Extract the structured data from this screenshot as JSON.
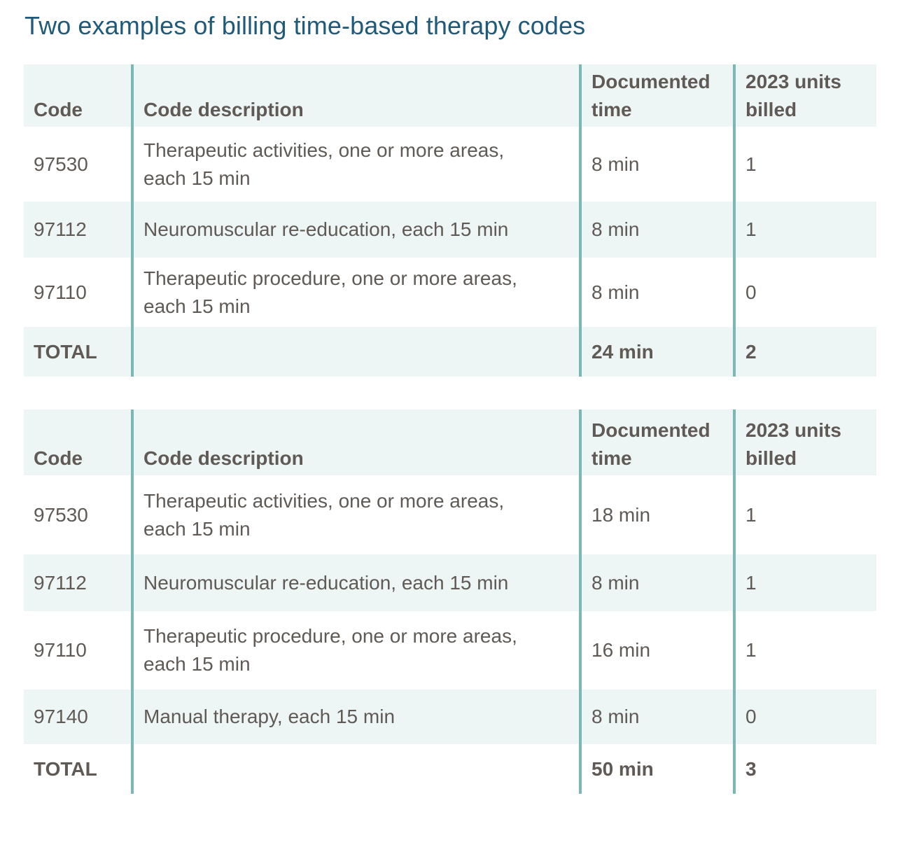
{
  "title": "Two examples of billing time-based therapy codes",
  "columns": {
    "code": "Code",
    "description": "Code description",
    "time": [
      "Documented",
      "time"
    ],
    "units": [
      "2023 units",
      "billed"
    ]
  },
  "tables": [
    {
      "rows": [
        {
          "code": "97530",
          "description": [
            "Therapeutic activities, one or more areas,",
            "each 15 min"
          ],
          "time": "8 min",
          "units": "1"
        },
        {
          "code": "97112",
          "description": [
            "Neuromuscular re-education, each 15  min"
          ],
          "time": "8 min",
          "units": "1"
        },
        {
          "code": "97110",
          "description": [
            "Therapeutic procedure, one or more areas,",
            "each 15 min"
          ],
          "time": "8 min",
          "units": "0"
        }
      ],
      "total": {
        "label": "TOTAL",
        "time": "24 min",
        "units": "2"
      }
    },
    {
      "rows": [
        {
          "code": "97530",
          "description": [
            "Therapeutic activities, one or more areas,",
            "each 15 min"
          ],
          "time": "18 min",
          "units": "1"
        },
        {
          "code": "97112",
          "description": [
            "Neuromuscular re-education, each 15  min"
          ],
          "time": "8 min",
          "units": "1"
        },
        {
          "code": "97110",
          "description": [
            "Therapeutic procedure, one or more areas,",
            "each 15 min"
          ],
          "time": "16 min",
          "units": "1"
        },
        {
          "code": "97140",
          "description": [
            "Manual therapy, each 15 min"
          ],
          "time": "8 min",
          "units": "0"
        }
      ],
      "total": {
        "label": "TOTAL",
        "time": "50 min",
        "units": "3"
      }
    }
  ],
  "colors": {
    "title": "#1f5a7a",
    "text": "#5f5a55",
    "row_shade": "#eef6f5",
    "separator": "#7ab8b4"
  }
}
